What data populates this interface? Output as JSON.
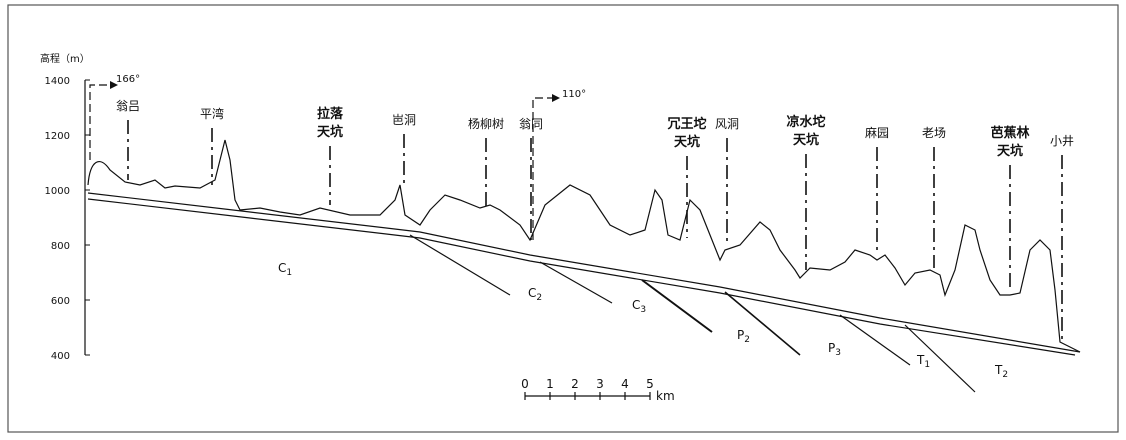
{
  "y_axis": {
    "label": "高程（m）",
    "ticks": [
      "1400",
      "1200",
      "1000",
      "800",
      "600",
      "400"
    ]
  },
  "directions": [
    "166°",
    "110°"
  ],
  "places": [
    {
      "lines": [
        "翁吕"
      ]
    },
    {
      "lines": [
        "平湾"
      ]
    },
    {
      "lines": [
        "拉落",
        "天坑"
      ]
    },
    {
      "lines": [
        "岜洞"
      ]
    },
    {
      "lines": [
        "杨柳树"
      ]
    },
    {
      "lines": [
        "翁同"
      ]
    },
    {
      "lines": [
        "冗王坨",
        "天坑"
      ]
    },
    {
      "lines": [
        "风洞"
      ]
    },
    {
      "lines": [
        "凉水坨",
        "天坑"
      ]
    },
    {
      "lines": [
        "麻园"
      ]
    },
    {
      "lines": [
        "老场"
      ]
    },
    {
      "lines": [
        "芭蕉林",
        "天坑"
      ]
    },
    {
      "lines": [
        "小井"
      ]
    }
  ],
  "strata": [
    {
      "letter": "C",
      "sub": "1"
    },
    {
      "letter": "C",
      "sub": "2"
    },
    {
      "letter": "C",
      "sub": "3"
    },
    {
      "letter": "P",
      "sub": "2"
    },
    {
      "letter": "P",
      "sub": "3"
    },
    {
      "letter": "T",
      "sub": "1"
    },
    {
      "letter": "T",
      "sub": "2"
    }
  ],
  "scale": {
    "ticks": [
      "0",
      "1",
      "2",
      "3",
      "4",
      "5"
    ],
    "unit": "km"
  }
}
